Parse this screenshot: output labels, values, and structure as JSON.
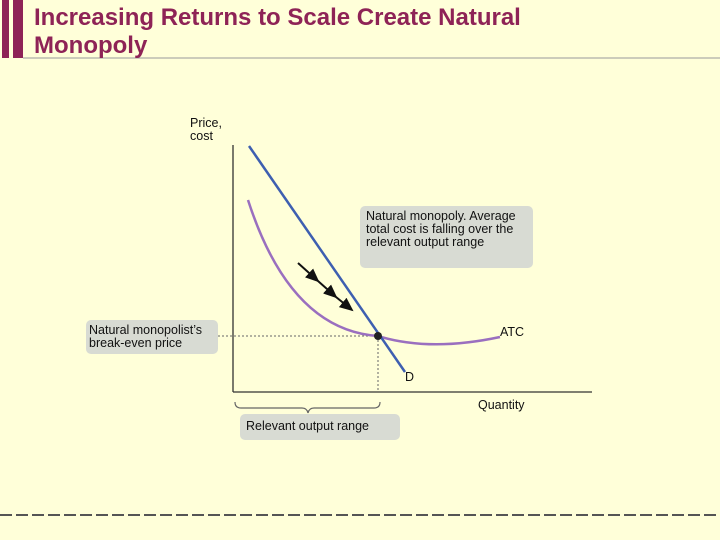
{
  "header": {
    "title": "Increasing Returns to Scale Create Natural Monopoly"
  },
  "diagram": {
    "y_axis_label": "Price, cost",
    "x_axis_label": "Quantity",
    "demand_label": "D",
    "atc_label": "ATC",
    "callouts": [
      "Natural monopoly. Average total cost is falling over the relevant output range",
      "Natural monopolist’s break-even price",
      "Relevant output range"
    ]
  }
}
